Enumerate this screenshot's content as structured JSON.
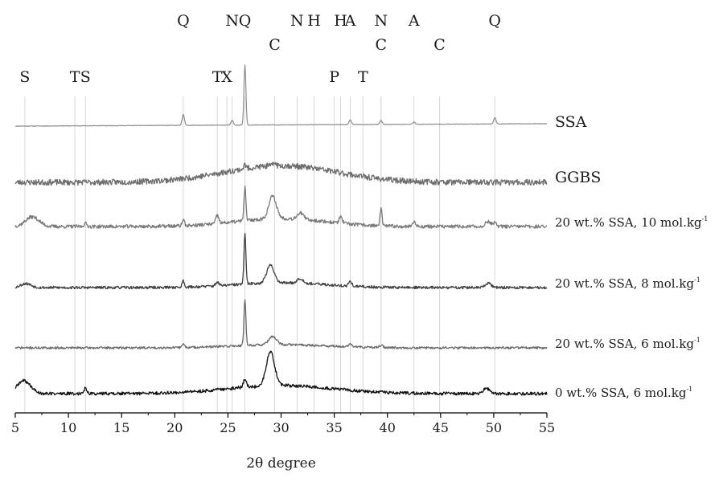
{
  "chart_data": {
    "type": "line",
    "title": "",
    "xlabel": "2θ degree",
    "ylabel": "",
    "xlim": [
      5,
      55
    ],
    "xticks": [
      5,
      10,
      15,
      20,
      25,
      30,
      35,
      40,
      45,
      50,
      55
    ],
    "grid": "vertical reference lines at peak positions",
    "peak_markers": [
      {
        "label": "S",
        "x": 5.9
      },
      {
        "label": "T",
        "x": 10.6
      },
      {
        "label": "S",
        "x": 11.6
      },
      {
        "label": "Q",
        "x": 20.8
      },
      {
        "label": "T",
        "x": 24.0
      },
      {
        "label": "X",
        "x": 24.9
      },
      {
        "label": "N",
        "x": 25.4
      },
      {
        "label": "Q",
        "x": 26.6
      },
      {
        "label": "C",
        "x": 29.4
      },
      {
        "label": "N",
        "x": 31.5
      },
      {
        "label": "H",
        "x": 33.1
      },
      {
        "label": "P",
        "x": 35.0
      },
      {
        "label": "H",
        "x": 35.6
      },
      {
        "label": "A",
        "x": 36.5
      },
      {
        "label": "T",
        "x": 37.7
      },
      {
        "label": "N",
        "x": 39.4
      },
      {
        "label": "C",
        "x": 39.4
      },
      {
        "label": "A",
        "x": 42.5
      },
      {
        "label": "C",
        "x": 44.9
      },
      {
        "label": "Q",
        "x": 50.1
      }
    ],
    "series": [
      {
        "name": "SSA",
        "label_main": "SSA",
        "label_sup": "",
        "color": "#8c8c8c",
        "baseline": 0.0,
        "slope": 0.06,
        "hump": {
          "center": 30,
          "width": 8,
          "height": 0
        },
        "noise": 0.3,
        "seed": 11,
        "peaks": [
          [
            20.8,
            14,
            0.15
          ],
          [
            25.4,
            6,
            0.15
          ],
          [
            26.6,
            75,
            0.13
          ],
          [
            36.5,
            6,
            0.15
          ],
          [
            39.4,
            5,
            0.15
          ],
          [
            42.5,
            3,
            0.15
          ],
          [
            50.1,
            8,
            0.15
          ]
        ]
      },
      {
        "name": "GGBS",
        "label_main": "GGBS",
        "label_sup": "",
        "color": "#6e6e6e",
        "baseline": 0.0,
        "slope": 0.0,
        "hump": {
          "center": 30,
          "width": 7.5,
          "height": 26
        },
        "noise": 4.5,
        "seed": 23,
        "peaks": [
          [
            26.6,
            6,
            0.15
          ],
          [
            29.4,
            6,
            0.15
          ]
        ]
      },
      {
        "name": "20 wt.% SSA, 10 mol.kg-1",
        "label_main": "20 wt.% SSA, 10 mol.kg",
        "label_sup": "-1",
        "color": "#7a7a7a",
        "baseline": 0.0,
        "slope": 0.0,
        "hump": {
          "center": 30,
          "width": 6,
          "height": 10
        },
        "noise": 2.2,
        "seed": 37,
        "peaks": [
          [
            6.6,
            12,
            0.9
          ],
          [
            11.6,
            4,
            0.2
          ],
          [
            20.8,
            8,
            0.15
          ],
          [
            24.0,
            10,
            0.2
          ],
          [
            26.6,
            42,
            0.13
          ],
          [
            29.2,
            28,
            0.5
          ],
          [
            31.8,
            8,
            0.4
          ],
          [
            35.6,
            8,
            0.2
          ],
          [
            39.4,
            22,
            0.13
          ],
          [
            42.5,
            6,
            0.2
          ],
          [
            49.5,
            6,
            0.4
          ],
          [
            50.1,
            4,
            0.2
          ]
        ]
      },
      {
        "name": "20 wt.% SSA, 8 mol.kg-1",
        "label_main": "20 wt.% SSA, 8 mol.kg",
        "label_sup": "-1",
        "color": "#404040",
        "baseline": 0.0,
        "slope": 0.0,
        "hump": {
          "center": 30,
          "width": 6,
          "height": 6
        },
        "noise": 1.7,
        "seed": 53,
        "peaks": [
          [
            6.0,
            5,
            0.7
          ],
          [
            20.8,
            8,
            0.15
          ],
          [
            24.0,
            5,
            0.2
          ],
          [
            26.6,
            62,
            0.13
          ],
          [
            29.0,
            22,
            0.5
          ],
          [
            31.8,
            6,
            0.4
          ],
          [
            36.5,
            6,
            0.2
          ],
          [
            49.5,
            5,
            0.4
          ]
        ]
      },
      {
        "name": "20 wt.% SSA, 6 mol.kg-1",
        "label_main": "20 wt.% SSA, 6 mol.kg",
        "label_sup": "-1",
        "color": "#6a6a6a",
        "baseline": 0.0,
        "slope": 0.0,
        "hump": {
          "center": 30,
          "width": 6,
          "height": 4
        },
        "noise": 1.4,
        "seed": 71,
        "peaks": [
          [
            20.8,
            5,
            0.15
          ],
          [
            26.6,
            58,
            0.13
          ],
          [
            29.2,
            10,
            0.5
          ],
          [
            36.5,
            4,
            0.2
          ],
          [
            39.4,
            3,
            0.2
          ]
        ]
      },
      {
        "name": "0 wt.% SSA, 6 mol.kg-1",
        "label_main": "0 wt.% SSA, 6 mol.kg",
        "label_sup": "-1",
        "color": "#111111",
        "baseline": 0.0,
        "slope": 0.0,
        "hump": {
          "center": 30,
          "width": 7,
          "height": 10
        },
        "noise": 2.0,
        "seed": 89,
        "peaks": [
          [
            5.8,
            16,
            0.9
          ],
          [
            11.6,
            7,
            0.2
          ],
          [
            26.6,
            10,
            0.2
          ],
          [
            29.0,
            42,
            0.55
          ],
          [
            49.3,
            7,
            0.4
          ]
        ]
      }
    ]
  }
}
